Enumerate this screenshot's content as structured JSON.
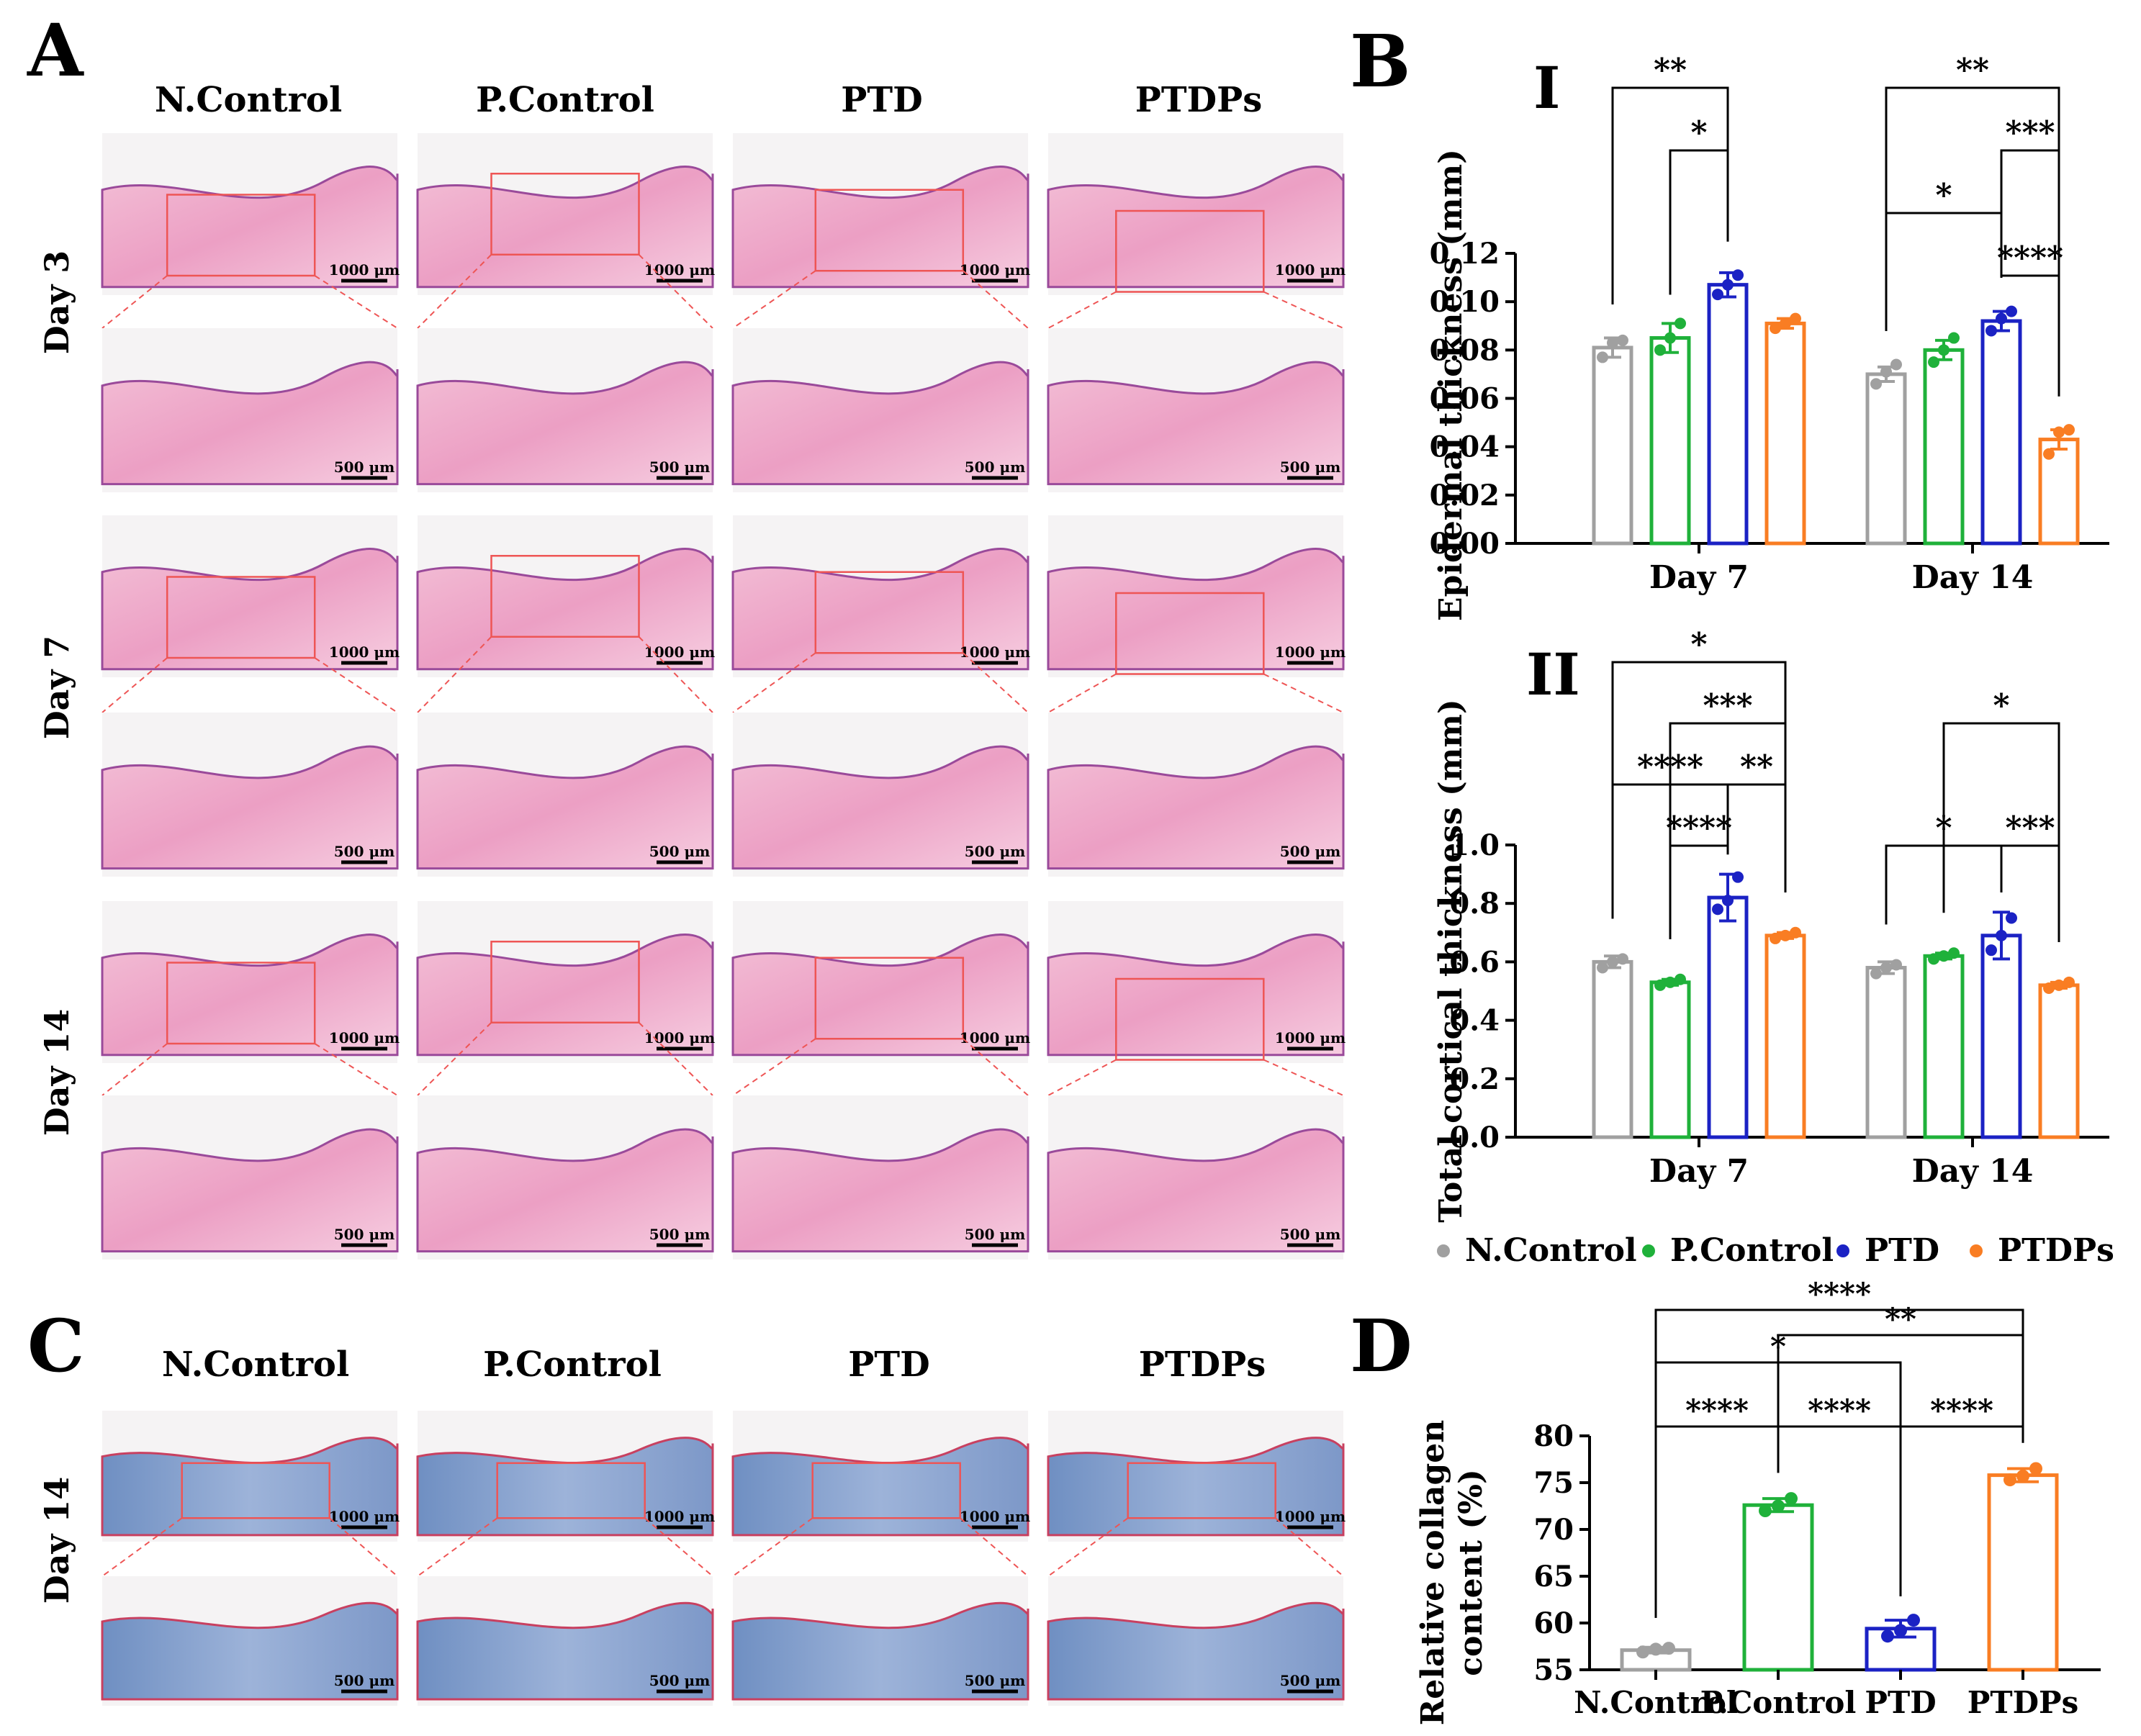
{
  "panel_letters": {
    "A": "A",
    "B": "B",
    "C": "C",
    "D": "D"
  },
  "panel_A": {
    "groups": [
      "N.Control",
      "P.Control",
      "PTD",
      "PTDPs"
    ],
    "days": [
      "Day 3",
      "Day 7",
      "Day 14"
    ],
    "scale_overview": "1000 μm",
    "scale_zoom": "500 μm"
  },
  "panel_C": {
    "groups": [
      "N.Control",
      "P.Control",
      "PTD",
      "PTDPs"
    ],
    "day": "Day 14",
    "scale_overview": "1000 μm",
    "scale_zoom": "500 μm"
  },
  "legend": {
    "items": [
      {
        "label": "N.Control",
        "color": "#a0a0a0"
      },
      {
        "label": "P.Control",
        "color": "#1fb13a"
      },
      {
        "label": "PTD",
        "color": "#1b22c4"
      },
      {
        "label": "PTDPs",
        "color": "#f97d23"
      }
    ]
  },
  "chart_data": [
    {
      "id": "B-I",
      "panel_label": "I",
      "type": "bar",
      "ylabel": "Epidermal thickness (mm)",
      "ylim": [
        0,
        0.12
      ],
      "yticks": [
        "0.00",
        "0.02",
        "0.04",
        "0.06",
        "0.08",
        "0.10",
        "0.12"
      ],
      "categories": [
        "Day 7",
        "Day 14"
      ],
      "series": [
        {
          "name": "N.Control",
          "color": "#a0a0a0",
          "values": [
            0.081,
            0.07
          ],
          "err": [
            0.004,
            0.003
          ],
          "points": [
            [
              0.077,
              0.083,
              0.084
            ],
            [
              0.066,
              0.071,
              0.074
            ]
          ]
        },
        {
          "name": "P.Control",
          "color": "#1fb13a",
          "values": [
            0.085,
            0.08
          ],
          "err": [
            0.006,
            0.004
          ],
          "points": [
            [
              0.08,
              0.085,
              0.091
            ],
            [
              0.075,
              0.08,
              0.085
            ]
          ]
        },
        {
          "name": "PTD",
          "color": "#1b22c4",
          "values": [
            0.107,
            0.092
          ],
          "err": [
            0.005,
            0.004
          ],
          "points": [
            [
              0.103,
              0.107,
              0.111
            ],
            [
              0.088,
              0.093,
              0.096
            ]
          ]
        },
        {
          "name": "PTDPs",
          "color": "#f97d23",
          "values": [
            0.091,
            0.043
          ],
          "err": [
            0.002,
            0.004
          ],
          "points": [
            [
              0.089,
              0.091,
              0.093
            ],
            [
              0.037,
              0.046,
              0.047
            ]
          ]
        }
      ],
      "significance": [
        {
          "cat": 0,
          "from": 0,
          "to": 2,
          "level": 0,
          "label": "**"
        },
        {
          "cat": 0,
          "from": 1,
          "to": 2,
          "level": 1,
          "label": "*"
        },
        {
          "cat": 1,
          "from": 0,
          "to": 3,
          "level": 0,
          "label": "**"
        },
        {
          "cat": 1,
          "from": 2,
          "to": 3,
          "level": 1,
          "label": "***"
        },
        {
          "cat": 1,
          "from": 0,
          "to": 2,
          "level": 2,
          "label": "*"
        },
        {
          "cat": 1,
          "from": 2,
          "to": 3,
          "level": 3,
          "label": "****"
        }
      ]
    },
    {
      "id": "B-II",
      "panel_label": "II",
      "type": "bar",
      "ylabel": "Total cortical thickness (mm)",
      "ylim": [
        0,
        1.0
      ],
      "yticks": [
        "0.0",
        "0.2",
        "0.4",
        "0.6",
        "0.8",
        "1.0"
      ],
      "categories": [
        "Day 7",
        "Day 14"
      ],
      "series": [
        {
          "name": "N.Control",
          "color": "#a0a0a0",
          "values": [
            0.6,
            0.58
          ],
          "err": [
            0.02,
            0.02
          ],
          "points": [
            [
              0.58,
              0.6,
              0.61
            ],
            [
              0.56,
              0.58,
              0.59
            ]
          ]
        },
        {
          "name": "P.Control",
          "color": "#1fb13a",
          "values": [
            0.53,
            0.62
          ],
          "err": [
            0.01,
            0.01
          ],
          "points": [
            [
              0.52,
              0.53,
              0.54
            ],
            [
              0.61,
              0.62,
              0.63
            ]
          ]
        },
        {
          "name": "PTD",
          "color": "#1b22c4",
          "values": [
            0.82,
            0.69
          ],
          "err": [
            0.08,
            0.08
          ],
          "points": [
            [
              0.78,
              0.81,
              0.89
            ],
            [
              0.64,
              0.69,
              0.75
            ]
          ]
        },
        {
          "name": "PTDPs",
          "color": "#f97d23",
          "values": [
            0.69,
            0.52
          ],
          "err": [
            0.01,
            0.01
          ],
          "points": [
            [
              0.68,
              0.69,
              0.7
            ],
            [
              0.51,
              0.52,
              0.53
            ]
          ]
        }
      ],
      "significance": [
        {
          "cat": 0,
          "from": 0,
          "to": 3,
          "level": 0,
          "label": "*"
        },
        {
          "cat": 0,
          "from": 1,
          "to": 3,
          "level": 1,
          "label": "***"
        },
        {
          "cat": 0,
          "from": 0,
          "to": 2,
          "level": 2,
          "label": "****"
        },
        {
          "cat": 0,
          "from": 2,
          "to": 3,
          "level": 2,
          "label": "**"
        },
        {
          "cat": 0,
          "from": 1,
          "to": 2,
          "level": 3,
          "label": "****"
        },
        {
          "cat": 1,
          "from": 1,
          "to": 3,
          "level": 1,
          "label": "*"
        },
        {
          "cat": 1,
          "from": 0,
          "to": 2,
          "level": 3,
          "label": "*"
        },
        {
          "cat": 1,
          "from": 2,
          "to": 3,
          "level": 3,
          "label": "***"
        }
      ]
    },
    {
      "id": "D",
      "type": "bar",
      "ylabel": "Relative collagen content (%)",
      "ylabel_lines": [
        "Relative collagen",
        "content (%)"
      ],
      "ylim": [
        55,
        80
      ],
      "yticks": [
        "55",
        "60",
        "65",
        "70",
        "75",
        "80"
      ],
      "categories": [
        "N.Control",
        "P.Control",
        "PTD",
        "PTDPs"
      ],
      "colors": [
        "#a0a0a0",
        "#1fb13a",
        "#1b22c4",
        "#f97d23"
      ],
      "values": [
        57.1,
        72.6,
        59.4,
        75.8
      ],
      "err": [
        0.3,
        0.7,
        0.9,
        0.7
      ],
      "points": [
        [
          56.9,
          57.2,
          57.3
        ],
        [
          72.0,
          72.5,
          73.3
        ],
        [
          58.6,
          59.2,
          60.3
        ],
        [
          75.3,
          75.7,
          76.5
        ]
      ],
      "significance": [
        {
          "from": 0,
          "to": 3,
          "level": 0,
          "label": "****"
        },
        {
          "from": 1,
          "to": 3,
          "level": 1,
          "label": "**"
        },
        {
          "from": 0,
          "to": 2,
          "level": 2,
          "label": "*"
        },
        {
          "from": 0,
          "to": 1,
          "level": 3,
          "label": "****"
        },
        {
          "from": 1,
          "to": 2,
          "level": 3,
          "label": "****"
        },
        {
          "from": 2,
          "to": 3,
          "level": 3,
          "label": "****"
        }
      ]
    }
  ]
}
